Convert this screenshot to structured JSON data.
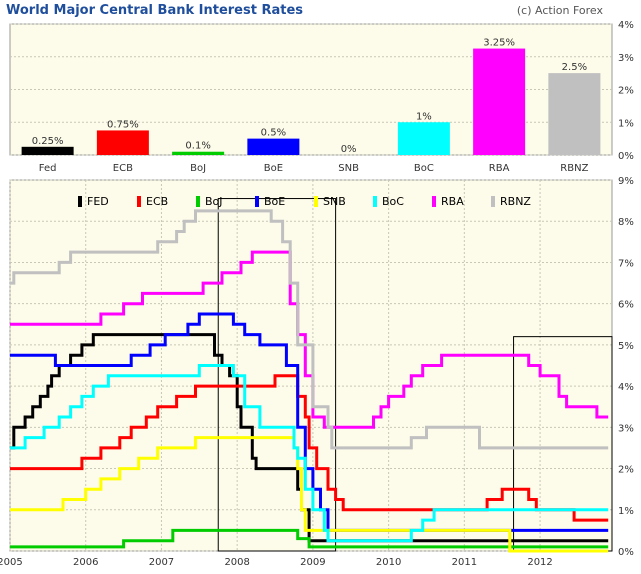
{
  "title": "World Major Central Bank Interest Rates",
  "credit": "(c) Action Forex",
  "chart_data": [
    {
      "type": "bar",
      "title": "World Major Central Bank Interest Rates",
      "categories": [
        "Fed",
        "ECB",
        "BoJ",
        "BoE",
        "SNB",
        "BoC",
        "RBA",
        "RBNZ"
      ],
      "values": [
        0.25,
        0.75,
        0.1,
        0.5,
        0,
        1,
        3.25,
        2.5
      ],
      "data_labels": [
        "0.25%",
        "0.75%",
        "0.1%",
        "0.5%",
        "0%",
        "1%",
        "3.25%",
        "2.5%"
      ],
      "colors": [
        "#000000",
        "#ff0000",
        "#00cc00",
        "#0000ff",
        "#ffff00",
        "#00ffff",
        "#ff00ff",
        "#c0c0c0"
      ],
      "ylim": [
        0,
        4
      ],
      "yticks": [
        "0%",
        "1%",
        "2%",
        "3%",
        "4%"
      ],
      "ytick_values": [
        0,
        1,
        2,
        3,
        4
      ],
      "grid": true,
      "background": "#fdfbe9"
    },
    {
      "type": "line",
      "step": true,
      "xlim": [
        2005,
        2012.95
      ],
      "ylim": [
        0,
        9
      ],
      "xticks": [
        "2005",
        "2006",
        "2007",
        "2008",
        "2009",
        "2010",
        "2011",
        "2012"
      ],
      "xtick_values": [
        2005,
        2006,
        2007,
        2008,
        2009,
        2010,
        2011,
        2012
      ],
      "yticks": [
        "0%",
        "1%",
        "2%",
        "3%",
        "4%",
        "5%",
        "6%",
        "7%",
        "8%",
        "9%"
      ],
      "ytick_values": [
        0,
        1,
        2,
        3,
        4,
        5,
        6,
        7,
        8,
        9
      ],
      "grid": true,
      "legend_position": "top",
      "background": "#fdfbe9",
      "highlight_boxes": [
        {
          "x_start": 2007.75,
          "x_end": 2009.3,
          "y_min": 0,
          "y_max": 8.55
        },
        {
          "x_start": 2011.65,
          "x_end": 2012.95,
          "y_min": 0,
          "y_max": 5.2
        }
      ],
      "series": [
        {
          "name": "FED",
          "color": "#000000",
          "points": [
            [
              2005,
              2.5
            ],
            [
              2005.05,
              3.0
            ],
            [
              2005.2,
              3.25
            ],
            [
              2005.3,
              3.5
            ],
            [
              2005.4,
              3.75
            ],
            [
              2005.5,
              4.0
            ],
            [
              2005.55,
              4.25
            ],
            [
              2005.65,
              4.5
            ],
            [
              2005.8,
              4.75
            ],
            [
              2005.95,
              5.0
            ],
            [
              2006.1,
              5.25
            ],
            [
              2007.7,
              4.75
            ],
            [
              2007.8,
              4.5
            ],
            [
              2007.9,
              4.25
            ],
            [
              2008.0,
              3.5
            ],
            [
              2008.05,
              3.0
            ],
            [
              2008.2,
              2.25
            ],
            [
              2008.25,
              2.0
            ],
            [
              2008.8,
              1.5
            ],
            [
              2008.85,
              1.0
            ],
            [
              2008.95,
              0.25
            ],
            [
              2012.9,
              0.25
            ]
          ]
        },
        {
          "name": "ECB",
          "color": "#ff0000",
          "points": [
            [
              2005,
              2.0
            ],
            [
              2005.95,
              2.25
            ],
            [
              2006.2,
              2.5
            ],
            [
              2006.45,
              2.75
            ],
            [
              2006.6,
              3.0
            ],
            [
              2006.8,
              3.25
            ],
            [
              2006.95,
              3.5
            ],
            [
              2007.2,
              3.75
            ],
            [
              2007.45,
              4.0
            ],
            [
              2008.5,
              4.25
            ],
            [
              2008.8,
              3.75
            ],
            [
              2008.9,
              3.25
            ],
            [
              2008.95,
              2.5
            ],
            [
              2009.05,
              2.0
            ],
            [
              2009.2,
              1.5
            ],
            [
              2009.3,
              1.25
            ],
            [
              2009.4,
              1.0
            ],
            [
              2011.3,
              1.25
            ],
            [
              2011.5,
              1.5
            ],
            [
              2011.85,
              1.25
            ],
            [
              2011.95,
              1.0
            ],
            [
              2012.45,
              0.75
            ],
            [
              2012.9,
              0.75
            ]
          ]
        },
        {
          "name": "BoJ",
          "color": "#00cc00",
          "points": [
            [
              2005,
              0.1
            ],
            [
              2006.5,
              0.25
            ],
            [
              2007.15,
              0.5
            ],
            [
              2008.8,
              0.3
            ],
            [
              2008.95,
              0.1
            ],
            [
              2012.9,
              0.1
            ]
          ]
        },
        {
          "name": "BoE",
          "color": "#0000ff",
          "points": [
            [
              2005,
              4.75
            ],
            [
              2005.6,
              4.5
            ],
            [
              2006.6,
              4.75
            ],
            [
              2006.85,
              5.0
            ],
            [
              2007.05,
              5.25
            ],
            [
              2007.35,
              5.5
            ],
            [
              2007.5,
              5.75
            ],
            [
              2007.95,
              5.5
            ],
            [
              2008.1,
              5.25
            ],
            [
              2008.3,
              5.0
            ],
            [
              2008.65,
              4.5
            ],
            [
              2008.8,
              3.0
            ],
            [
              2008.9,
              2.0
            ],
            [
              2009.0,
              1.5
            ],
            [
              2009.1,
              1.0
            ],
            [
              2009.2,
              0.5
            ],
            [
              2012.9,
              0.5
            ]
          ]
        },
        {
          "name": "SNB",
          "color": "#ffff00",
          "points": [
            [
              2005,
              1.0
            ],
            [
              2005.7,
              1.25
            ],
            [
              2006.0,
              1.5
            ],
            [
              2006.2,
              1.75
            ],
            [
              2006.45,
              2.0
            ],
            [
              2006.7,
              2.25
            ],
            [
              2006.95,
              2.5
            ],
            [
              2007.45,
              2.75
            ],
            [
              2008.75,
              2.5
            ],
            [
              2008.8,
              2.0
            ],
            [
              2008.85,
              1.0
            ],
            [
              2008.9,
              0.5
            ],
            [
              2011.6,
              0.0
            ],
            [
              2012.9,
              0.0
            ]
          ]
        },
        {
          "name": "BoC",
          "color": "#00ffff",
          "points": [
            [
              2005,
              2.5
            ],
            [
              2005.2,
              2.75
            ],
            [
              2005.45,
              3.0
            ],
            [
              2005.65,
              3.25
            ],
            [
              2005.8,
              3.5
            ],
            [
              2005.95,
              3.75
            ],
            [
              2006.1,
              4.0
            ],
            [
              2006.3,
              4.25
            ],
            [
              2007.5,
              4.5
            ],
            [
              2007.95,
              4.25
            ],
            [
              2008.1,
              3.5
            ],
            [
              2008.3,
              3.0
            ],
            [
              2008.75,
              2.5
            ],
            [
              2008.8,
              2.25
            ],
            [
              2008.9,
              1.5
            ],
            [
              2009.0,
              1.0
            ],
            [
              2009.15,
              0.5
            ],
            [
              2009.2,
              0.25
            ],
            [
              2010.3,
              0.5
            ],
            [
              2010.45,
              0.75
            ],
            [
              2010.6,
              1.0
            ],
            [
              2012.9,
              1.0
            ]
          ]
        },
        {
          "name": "RBA",
          "color": "#ff00ff",
          "points": [
            [
              2005,
              5.5
            ],
            [
              2005.2,
              5.5
            ],
            [
              2005.25,
              5.5
            ],
            [
              2006.2,
              5.75
            ],
            [
              2006.5,
              6.0
            ],
            [
              2006.75,
              6.25
            ],
            [
              2007.55,
              6.5
            ],
            [
              2007.8,
              6.75
            ],
            [
              2008.05,
              7.0
            ],
            [
              2008.2,
              7.25
            ],
            [
              2008.7,
              6.0
            ],
            [
              2008.8,
              5.25
            ],
            [
              2008.9,
              4.25
            ],
            [
              2009.0,
              3.25
            ],
            [
              2009.15,
              3.0
            ],
            [
              2009.8,
              3.25
            ],
            [
              2009.9,
              3.5
            ],
            [
              2010.0,
              3.75
            ],
            [
              2010.2,
              4.0
            ],
            [
              2010.3,
              4.25
            ],
            [
              2010.45,
              4.5
            ],
            [
              2010.7,
              4.75
            ],
            [
              2011.85,
              4.5
            ],
            [
              2012.0,
              4.25
            ],
            [
              2012.25,
              3.75
            ],
            [
              2012.35,
              3.5
            ],
            [
              2012.75,
              3.25
            ],
            [
              2012.9,
              3.25
            ]
          ]
        },
        {
          "name": "RBNZ",
          "color": "#c0c0c0",
          "points": [
            [
              2005,
              6.5
            ],
            [
              2005.05,
              6.75
            ],
            [
              2005.65,
              7.0
            ],
            [
              2005.8,
              7.25
            ],
            [
              2006.95,
              7.5
            ],
            [
              2007.2,
              7.75
            ],
            [
              2007.3,
              8.0
            ],
            [
              2007.45,
              8.25
            ],
            [
              2008.45,
              8.0
            ],
            [
              2008.6,
              7.5
            ],
            [
              2008.7,
              6.5
            ],
            [
              2008.8,
              5.0
            ],
            [
              2009.0,
              3.5
            ],
            [
              2009.2,
              3.0
            ],
            [
              2009.25,
              2.5
            ],
            [
              2010.3,
              2.75
            ],
            [
              2010.5,
              3.0
            ],
            [
              2011.2,
              2.5
            ],
            [
              2012.9,
              2.5
            ]
          ]
        }
      ]
    }
  ]
}
